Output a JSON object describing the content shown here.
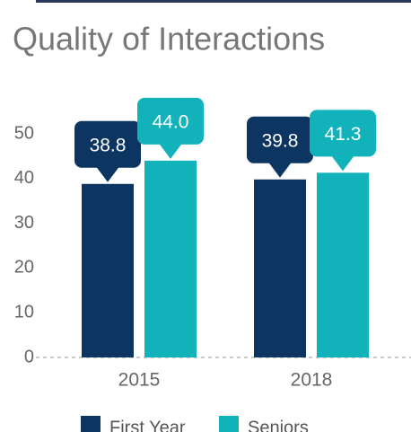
{
  "chart_data": {
    "type": "bar",
    "title": "Quality of Interactions",
    "categories": [
      "2015",
      "2018"
    ],
    "series": [
      {
        "name": "First Year",
        "color": "#0d3561",
        "values": [
          38.8,
          39.8
        ],
        "value_labels": [
          "38.8",
          "39.8"
        ]
      },
      {
        "name": "Seniors",
        "color": "#12b2bb",
        "values": [
          44.0,
          41.3
        ],
        "value_labels": [
          "44.0",
          "41.3"
        ]
      }
    ],
    "ylim": [
      0,
      50
    ],
    "yticks": [
      0,
      10,
      20,
      30,
      40,
      50
    ],
    "grid": false
  }
}
